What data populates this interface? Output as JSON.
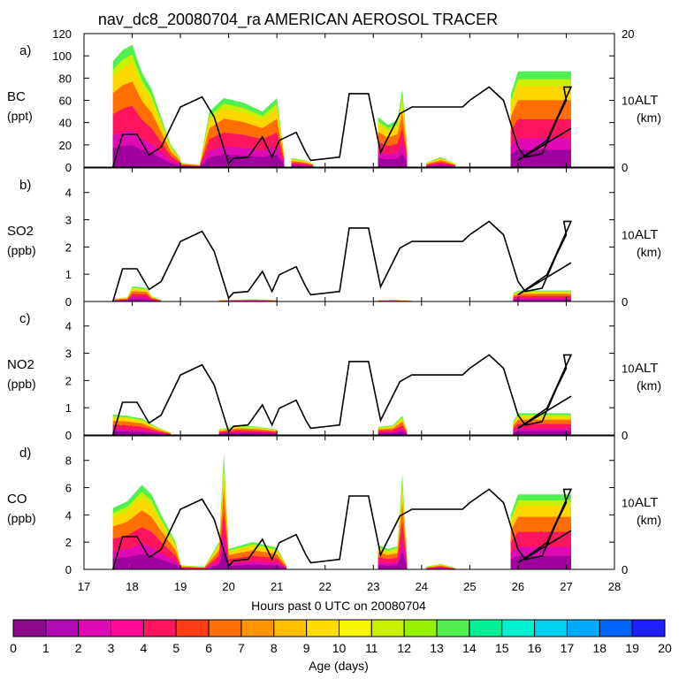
{
  "chart_data": {
    "type": "area",
    "title": "nav_dc8_20080704_ra AMERICAN AEROSOL TRACER",
    "xlabel": "Hours past 0 UTC on 20080704",
    "x_ticks": [
      17,
      18,
      19,
      20,
      21,
      22,
      23,
      24,
      25,
      26,
      27,
      28
    ],
    "xlim": [
      17,
      28
    ],
    "colorbar": {
      "label": "Age (days)",
      "ticks": [
        0,
        1,
        2,
        3,
        4,
        5,
        6,
        7,
        8,
        9,
        10,
        11,
        12,
        13,
        14,
        15,
        16,
        17,
        18,
        19,
        20
      ],
      "colors": [
        "#8b0a8b",
        "#b40ab4",
        "#e00ab4",
        "#ff0a96",
        "#ff1460",
        "#ff3c14",
        "#ff6e00",
        "#ff9600",
        "#ffbe00",
        "#ffdc00",
        "#f5f500",
        "#c8f000",
        "#96f000",
        "#50f050",
        "#00f096",
        "#00f0d2",
        "#00d2f0",
        "#00aaff",
        "#0064ff",
        "#1e1eff",
        "#7814ff"
      ]
    },
    "panels": [
      {
        "id": "a",
        "letter": "a)",
        "species": "BC",
        "unit": "(ppt)",
        "ylim": [
          0,
          120
        ],
        "y_ticks": [
          0,
          20,
          40,
          60,
          80,
          100,
          120
        ],
        "alt_ylim": [
          0,
          20
        ],
        "alt_ticks": [
          0,
          10,
          20
        ],
        "alt_label": "ALT",
        "alt_unit": "(km)",
        "segments": [
          {
            "t": [
              17.6,
              17.8,
              18.0,
              18.2,
              18.4,
              18.6,
              18.8,
              19.0
            ],
            "v": [
              95,
              105,
              110,
              85,
              70,
              45,
              20,
              8
            ]
          },
          {
            "t": [
              19.0,
              19.4,
              19.6,
              19.9,
              20.3,
              20.7,
              21.0,
              21.15
            ],
            "v": [
              4,
              2,
              50,
              62,
              58,
              50,
              62,
              12
            ]
          },
          {
            "t": [
              21.3,
              21.6,
              21.75
            ],
            "v": [
              8,
              6,
              3
            ]
          },
          {
            "t": [
              23.1,
              23.3,
              23.5,
              23.6,
              23.7
            ],
            "v": [
              45,
              38,
              42,
              70,
              20
            ]
          },
          {
            "t": [
              24.1,
              24.4,
              24.7
            ],
            "v": [
              4,
              9,
              3
            ]
          },
          {
            "t": [
              25.85,
              26.0,
              26.5,
              27.1
            ],
            "v": [
              65,
              86,
              86,
              86
            ]
          }
        ],
        "altitude_km": [
          0,
          4.9,
          4.9,
          1.8,
          3,
          9,
          10.5,
          7.5,
          0.5,
          1.3,
          1.5,
          4.5,
          1.5,
          4,
          5.2,
          2.2,
          1,
          1.5,
          11,
          11,
          2.2,
          8,
          9,
          9,
          9,
          10,
          12,
          10,
          3,
          1.5,
          2,
          7,
          10,
          12,
          12,
          4,
          1,
          5.8
        ]
      },
      {
        "id": "b",
        "letter": "b)",
        "species": "SO2",
        "unit": "(ppb)",
        "ylim": [
          0,
          4.9
        ],
        "y_ticks": [
          0,
          1,
          2,
          3,
          4
        ],
        "alt_ylim": [
          0,
          20
        ],
        "alt_ticks": [
          0,
          10
        ],
        "alt_label": "ALT",
        "alt_unit": "(km)",
        "segments": [
          {
            "t": [
              17.6,
              17.9,
              18.0,
              18.3,
              18.4,
              18.6
            ],
            "v": [
              0.1,
              0.15,
              0.55,
              0.5,
              0.2,
              0.05
            ]
          },
          {
            "t": [
              19.8,
              20.5,
              21.0
            ],
            "v": [
              0.05,
              0.08,
              0.05
            ]
          },
          {
            "t": [
              23.1,
              23.5,
              23.8
            ],
            "v": [
              0.05,
              0.06,
              0.03
            ]
          },
          {
            "t": [
              25.9,
              26.0,
              26.5,
              27.1
            ],
            "v": [
              0.3,
              0.4,
              0.4,
              0.4
            ]
          }
        ],
        "altitude_km": [
          0,
          4.9,
          4.9,
          1.8,
          3,
          9,
          10.5,
          7.5,
          0.5,
          1.3,
          1.5,
          4.5,
          1.5,
          4,
          5.2,
          2.2,
          1,
          1.5,
          11,
          11,
          2.2,
          8,
          9,
          9,
          9,
          10,
          12,
          10,
          3,
          1.5,
          2,
          7,
          10,
          12,
          12,
          4,
          1,
          5.8
        ]
      },
      {
        "id": "c",
        "letter": "c)",
        "species": "NO2",
        "unit": "(ppb)",
        "ylim": [
          0,
          4.9
        ],
        "y_ticks": [
          0,
          1,
          2,
          3,
          4
        ],
        "alt_ylim": [
          0,
          20
        ],
        "alt_ticks": [
          0,
          10
        ],
        "alt_label": "ALT",
        "alt_unit": "(km)",
        "segments": [
          {
            "t": [
              17.6,
              17.9,
              18.2,
              18.5,
              18.8
            ],
            "v": [
              0.75,
              0.7,
              0.6,
              0.3,
              0.08
            ]
          },
          {
            "t": [
              19.8,
              20.2,
              20.6,
              21.0
            ],
            "v": [
              0.2,
              0.35,
              0.3,
              0.2
            ]
          },
          {
            "t": [
              23.1,
              23.4,
              23.6,
              23.7
            ],
            "v": [
              0.3,
              0.35,
              0.7,
              0.15
            ]
          },
          {
            "t": [
              25.9,
              26.0,
              26.5,
              27.1
            ],
            "v": [
              0.5,
              0.8,
              0.8,
              0.8
            ]
          }
        ],
        "altitude_km": [
          0,
          4.9,
          4.9,
          1.8,
          3,
          9,
          10.5,
          7.5,
          0.5,
          1.3,
          1.5,
          4.5,
          1.5,
          4,
          5.2,
          2.2,
          1,
          1.5,
          11,
          11,
          2.2,
          8,
          9,
          9,
          9,
          10,
          12,
          10,
          3,
          1.5,
          2,
          7,
          10,
          12,
          12,
          4,
          1,
          5.8
        ]
      },
      {
        "id": "d",
        "letter": "d)",
        "species": "CO",
        "unit": "(ppb)",
        "ylim": [
          0,
          9.8
        ],
        "y_ticks": [
          0,
          2,
          4,
          6,
          8
        ],
        "alt_ylim": [
          0,
          20
        ],
        "alt_ticks": [
          0,
          10
        ],
        "alt_label": "ALT",
        "alt_unit": "(km)",
        "segments": [
          {
            "t": [
              17.6,
              17.9,
              18.2,
              18.4,
              18.6,
              18.9,
              19.0
            ],
            "v": [
              4.5,
              5,
              6.2,
              5.5,
              4,
              2,
              0.5
            ]
          },
          {
            "t": [
              19.0,
              19.5,
              19.8,
              19.9,
              20.0,
              20.5,
              21.0,
              21.2
            ],
            "v": [
              0.3,
              0.2,
              2,
              8.5,
              1.5,
              2,
              1.6,
              0.3
            ]
          },
          {
            "t": [
              23.1,
              23.3,
              23.5,
              23.6,
              23.7
            ],
            "v": [
              1.8,
              1.5,
              1.7,
              7.0,
              0.8
            ]
          },
          {
            "t": [
              24.1,
              24.4,
              24.7
            ],
            "v": [
              0.2,
              0.4,
              0.1
            ]
          },
          {
            "t": [
              25.85,
              26.0,
              26.5,
              27.1
            ],
            "v": [
              4,
              5.5,
              5.5,
              5.5
            ]
          }
        ],
        "altitude_km": [
          0,
          4.9,
          4.9,
          1.8,
          3,
          9,
          10.5,
          7.5,
          0.5,
          1.3,
          1.5,
          4.5,
          1.5,
          4,
          5.2,
          2.2,
          1,
          1.5,
          11,
          11,
          2.2,
          8,
          9,
          9,
          9,
          10,
          12,
          10,
          3,
          1.5,
          2,
          7,
          10,
          12,
          12,
          4,
          1,
          5.8
        ]
      }
    ],
    "altitude_times": [
      17.6,
      17.8,
      18.1,
      18.35,
      18.6,
      19.0,
      19.45,
      19.7,
      20.0,
      20.1,
      20.4,
      20.7,
      20.9,
      21.05,
      21.4,
      21.6,
      21.7,
      22.3,
      22.5,
      22.9,
      23.15,
      23.55,
      23.8,
      24.5,
      24.85,
      25.0,
      25.4,
      25.7,
      26.0,
      26.15,
      26.5,
      26.8,
      27.0,
      26.95,
      27.1,
      26.6,
      26.0,
      27.1
    ]
  }
}
